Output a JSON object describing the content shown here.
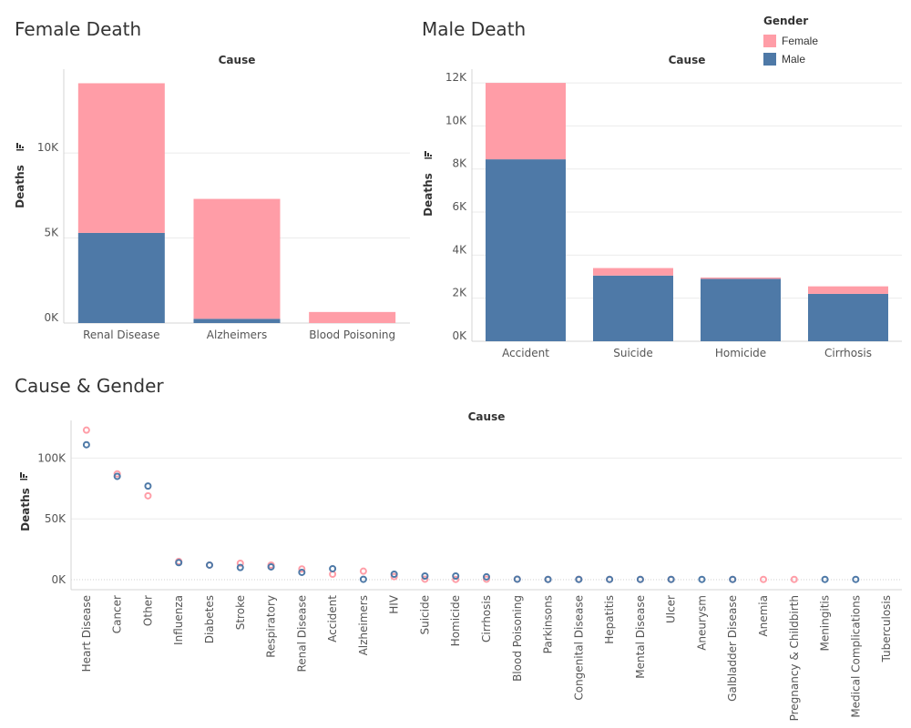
{
  "colors": {
    "female": "#ff9da7",
    "male": "#4e79a7",
    "grid": "#ebebeb",
    "axis": "#d4d4d4",
    "text": "#555555"
  },
  "legend": {
    "title": "Gender",
    "items": [
      {
        "label": "Female",
        "color": "#ff9da7"
      },
      {
        "label": "Male",
        "color": "#4e79a7"
      }
    ]
  },
  "chart_data": [
    {
      "type": "bar",
      "stacked": true,
      "title": "Female Death",
      "column_header": "Cause",
      "ylabel": "Deaths",
      "categories": [
        "Renal Disease",
        "Alzheimers",
        "Blood Poisoning"
      ],
      "series": [
        {
          "name": "Male",
          "values": [
            5300,
            250,
            0
          ]
        },
        {
          "name": "Female",
          "values": [
            8800,
            7050,
            650
          ]
        }
      ],
      "ylim": [
        0,
        14500
      ],
      "yticks": [
        0,
        5000,
        10000
      ],
      "ytick_labels": [
        "0K",
        "5K",
        "10K"
      ]
    },
    {
      "type": "bar",
      "stacked": true,
      "title": "Male Death",
      "column_header": "Cause",
      "ylabel": "Deaths",
      "categories": [
        "Accident",
        "Suicide",
        "Homicide",
        "Cirrhosis"
      ],
      "series": [
        {
          "name": "Male",
          "values": [
            8450,
            3050,
            2900,
            2200
          ]
        },
        {
          "name": "Female",
          "values": [
            3550,
            350,
            60,
            350
          ]
        }
      ],
      "ylim": [
        0,
        12300
      ],
      "yticks": [
        0,
        2000,
        4000,
        6000,
        8000,
        10000,
        12000
      ],
      "ytick_labels": [
        "0K",
        "2K",
        "4K",
        "6K",
        "8K",
        "10K",
        "12K"
      ]
    },
    {
      "type": "scatter",
      "title": "Cause & Gender",
      "column_header": "Cause",
      "ylabel": "Deaths",
      "categories": [
        "Heart Disease",
        "Cancer",
        "Other",
        "Influenza",
        "Diabetes",
        "Stroke",
        "Respiratory",
        "Renal Disease",
        "Accident",
        "Alzheimers",
        "HIV",
        "Suicide",
        "Homicide",
        "Cirrhosis",
        "Blood Poisoning",
        "Parkinsons",
        "Congenital Disease",
        "Hepatitis",
        "Mental Disease",
        "Ulcer",
        "Aneurysm",
        "Galbladder Disease",
        "Anemia",
        "Pregnancy & Childbirth",
        "Meningitis",
        "Medical Complications",
        "Tuberculosis"
      ],
      "series": [
        {
          "name": "Female",
          "values": [
            123000,
            87000,
            69000,
            15000,
            12000,
            13500,
            12000,
            8800,
            4500,
            7000,
            2500,
            400,
            200,
            400,
            400,
            200,
            300,
            200,
            200,
            200,
            null,
            200,
            200,
            200,
            null,
            null,
            null
          ]
        },
        {
          "name": "Male",
          "values": [
            111000,
            85000,
            77000,
            14000,
            12000,
            10000,
            10500,
            6000,
            9000,
            300,
            4500,
            3000,
            3000,
            2300,
            400,
            200,
            200,
            200,
            200,
            200,
            200,
            200,
            null,
            null,
            200,
            200,
            null
          ]
        }
      ],
      "ylim": [
        0,
        125000
      ],
      "yticks": [
        0,
        50000,
        100000
      ],
      "ytick_labels": [
        "0K",
        "50K",
        "100K"
      ]
    }
  ]
}
